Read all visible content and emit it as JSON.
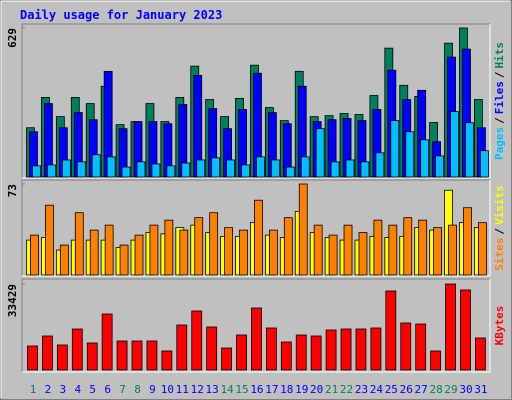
{
  "chart_data": [
    {
      "type": "bar",
      "title": "Daily usage for January 2023",
      "ylim": [
        0,
        629
      ],
      "yticks": [
        629
      ],
      "legend_separator": "/",
      "series": [
        {
          "name": "Hits",
          "color": "#00805c",
          "values": [
            208,
            336,
            255,
            336,
            310,
            383,
            221,
            234,
            310,
            234,
            336,
            468,
            327,
            255,
            332,
            472,
            293,
            238,
            446,
            255,
            259,
            268,
            264,
            344,
            544,
            387,
            340,
            230,
            565,
            629,
            327
          ]
        },
        {
          "name": "Files",
          "color": "#0000ff",
          "values": [
            191,
            310,
            208,
            272,
            242,
            446,
            204,
            234,
            234,
            225,
            306,
            429,
            289,
            204,
            285,
            438,
            272,
            225,
            383,
            234,
            242,
            247,
            238,
            285,
            451,
            327,
            366,
            149,
            506,
            540,
            208
          ]
        },
        {
          "name": "Pages",
          "color": "#00c0ff",
          "values": [
            47,
            51,
            72,
            64,
            94,
            85,
            42,
            64,
            55,
            47,
            59,
            72,
            81,
            72,
            51,
            85,
            72,
            42,
            85,
            204,
            64,
            72,
            64,
            102,
            238,
            191,
            157,
            89,
            276,
            229,
            111
          ]
        }
      ]
    },
    {
      "type": "bar",
      "ylim": [
        0,
        73
      ],
      "yticks": [
        73
      ],
      "legend_separator": "/",
      "series": [
        {
          "name": "Visits",
          "color": "#ffff00",
          "values": [
            28,
            30,
            20,
            28,
            28,
            28,
            22,
            28,
            34,
            33,
            38,
            40,
            34,
            31,
            31,
            42,
            32,
            30,
            51,
            34,
            30,
            28,
            28,
            31,
            30,
            31,
            38,
            36,
            68,
            42,
            38
          ]
        },
        {
          "name": "Sites",
          "color": "#ff8000",
          "values": [
            32,
            56,
            24,
            50,
            36,
            40,
            24,
            32,
            40,
            44,
            36,
            46,
            50,
            38,
            36,
            60,
            36,
            46,
            73,
            40,
            32,
            40,
            34,
            44,
            40,
            46,
            44,
            38,
            40,
            54,
            42
          ]
        }
      ]
    },
    {
      "type": "bar",
      "ylim": [
        0,
        33429
      ],
      "yticks": [
        33429
      ],
      "categories": [
        "1",
        "2",
        "3",
        "4",
        "5",
        "6",
        "7",
        "8",
        "9",
        "10",
        "11",
        "12",
        "13",
        "14",
        "15",
        "16",
        "17",
        "18",
        "19",
        "20",
        "21",
        "22",
        "23",
        "24",
        "25",
        "26",
        "27",
        "28",
        "29",
        "30",
        "31"
      ],
      "category_colors": [
        "#00805c",
        "#0000ff",
        "#0000ff",
        "#0000ff",
        "#0000ff",
        "#0000ff",
        "#00805c",
        "#00805c",
        "#0000ff",
        "#0000ff",
        "#0000ff",
        "#0000ff",
        "#0000ff",
        "#00805c",
        "#00805c",
        "#0000ff",
        "#0000ff",
        "#0000ff",
        "#0000ff",
        "#0000ff",
        "#00805c",
        "#00805c",
        "#0000ff",
        "#0000ff",
        "#0000ff",
        "#0000ff",
        "#0000ff",
        "#00805c",
        "#00805c",
        "#0000ff",
        "#0000ff"
      ],
      "series": [
        {
          "name": "KBytes",
          "color": "#ff0000",
          "values": [
            9329,
            13216,
            9718,
            15937,
            10495,
            21767,
            11273,
            11273,
            11273,
            7385,
            17492,
            22933,
            16714,
            8551,
            13604,
            24099,
            16326,
            10884,
            13604,
            13216,
            15549,
            15937,
            15937,
            16326,
            30707,
            18269,
            17880,
            7385,
            33429,
            31096,
            12439
          ]
        }
      ]
    }
  ]
}
